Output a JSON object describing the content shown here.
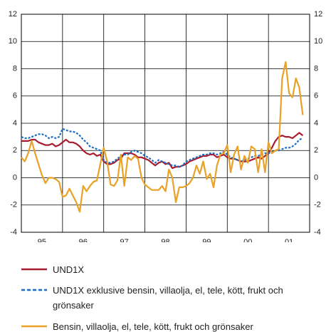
{
  "chart_data": {
    "type": "line",
    "x": [
      0,
      1,
      2,
      3,
      4,
      5,
      6,
      7,
      8,
      9,
      10,
      11,
      12,
      13,
      14,
      15,
      16,
      17,
      18,
      19,
      20,
      21,
      22,
      23,
      24,
      25,
      26,
      27,
      28,
      29,
      30,
      31,
      32,
      33,
      34,
      35,
      36,
      37,
      38,
      39,
      40,
      41,
      42,
      43,
      44,
      45,
      46,
      47,
      48,
      49,
      50,
      51,
      52,
      53,
      54,
      55,
      56,
      57,
      58,
      59,
      60,
      61,
      62,
      63,
      64,
      65,
      66,
      67,
      68,
      69,
      70,
      71,
      72,
      73,
      74,
      75,
      76,
      77,
      78,
      79,
      80,
      81,
      82
    ],
    "series": [
      {
        "name": "UND1X",
        "color": "#a81c30",
        "dash": false,
        "values": [
          2.7,
          2.7,
          2.7,
          2.8,
          2.8,
          2.6,
          2.5,
          2.4,
          2.4,
          2.5,
          2.3,
          2.4,
          2.6,
          2.8,
          2.6,
          2.6,
          2.5,
          2.3,
          2.0,
          1.8,
          1.7,
          1.8,
          1.6,
          1.7,
          1.2,
          1.0,
          1.0,
          1.1,
          1.3,
          1.4,
          1.8,
          1.8,
          1.8,
          1.7,
          1.5,
          1.5,
          1.4,
          1.3,
          1.1,
          0.9,
          1.1,
          1.2,
          1.0,
          1.1,
          0.7,
          0.8,
          0.8,
          0.9,
          1.0,
          1.2,
          1.3,
          1.4,
          1.5,
          1.6,
          1.6,
          1.7,
          1.7,
          1.5,
          1.6,
          1.7,
          1.5,
          1.4,
          1.4,
          1.3,
          1.2,
          1.2,
          1.2,
          1.3,
          1.4,
          1.5,
          1.4,
          1.6,
          1.8,
          2.2,
          2.7,
          3.0,
          3.1,
          3.0,
          3.0,
          2.9,
          3.1,
          3.3,
          3.1
        ]
      },
      {
        "name": "UND1X exklusive bensin, villaolja, el, tele, kött, frukt och grönsaker",
        "color": "#1b6ec2",
        "dash": true,
        "values": [
          3.0,
          2.9,
          2.9,
          3.0,
          3.1,
          3.2,
          3.2,
          3.1,
          2.9,
          3.0,
          2.9,
          3.0,
          3.6,
          3.5,
          3.4,
          3.4,
          3.3,
          3.1,
          2.8,
          2.6,
          2.3,
          2.2,
          2.1,
          2.0,
          1.3,
          1.1,
          1.1,
          1.2,
          1.4,
          1.6,
          1.7,
          1.7,
          1.9,
          2.0,
          1.9,
          1.8,
          1.6,
          1.5,
          1.3,
          1.1,
          1.3,
          1.2,
          1.1,
          1.0,
          0.9,
          0.9,
          0.8,
          0.9,
          1.2,
          1.3,
          1.4,
          1.5,
          1.6,
          1.7,
          1.7,
          1.8,
          1.8,
          1.7,
          1.8,
          1.9,
          1.7,
          1.5,
          1.4,
          1.3,
          1.2,
          1.3,
          1.4,
          1.5,
          1.6,
          1.6,
          1.7,
          1.8,
          1.8,
          1.9,
          2.0,
          2.0,
          2.1,
          2.2,
          2.2,
          2.3,
          2.5,
          2.8,
          2.9
        ]
      },
      {
        "name": "Bensin, villaolja, el, tele, kött, frukt och grönsaker",
        "color": "#e9a126",
        "dash": false,
        "values": [
          1.5,
          1.2,
          1.8,
          2.7,
          1.8,
          1.0,
          0.2,
          -0.4,
          0,
          0,
          -0.1,
          -0.3,
          -1.4,
          -1.3,
          -0.8,
          -1.3,
          -1.8,
          -2.5,
          -0.6,
          -1.0,
          -0.6,
          -0.3,
          -0.2,
          1.0,
          2.2,
          1.2,
          -0.5,
          -0.6,
          -0.2,
          1.7,
          -0.6,
          1.5,
          1.3,
          1.6,
          1.4,
          0.0,
          -0.5,
          -0.7,
          -0.9,
          -0.9,
          -0.9,
          -0.6,
          -1.0,
          0.6,
          0.0,
          -1.8,
          -0.7,
          -0.7,
          -0.6,
          -0.4,
          0.0,
          0.9,
          0.3,
          1.2,
          -0.1,
          0.3,
          -0.7,
          0.9,
          1.7,
          1.8,
          2.4,
          0.4,
          1.7,
          2.3,
          0.6,
          1.6,
          1.1,
          2.3,
          2.1,
          0.4,
          2.1,
          0.4,
          2.6,
          1.8,
          2.0,
          2.1,
          7.3,
          8.5,
          6.2,
          5.9,
          7.3,
          6.6,
          4.6
        ]
      }
    ],
    "xlim": [
      0,
      84
    ],
    "xticks": [
      {
        "value": 6,
        "label": "95"
      },
      {
        "value": 18,
        "label": "96"
      },
      {
        "value": 30,
        "label": "97"
      },
      {
        "value": 42,
        "label": "98"
      },
      {
        "value": 54,
        "label": "99"
      },
      {
        "value": 66,
        "label": "00"
      },
      {
        "value": 78,
        "label": "01"
      }
    ],
    "xgrid": [
      12,
      24,
      36,
      48,
      60,
      72
    ],
    "ylim": [
      -4,
      12
    ],
    "yticks": [
      -4,
      -2,
      0,
      2,
      4,
      6,
      8,
      10,
      12
    ],
    "grid": true
  }
}
